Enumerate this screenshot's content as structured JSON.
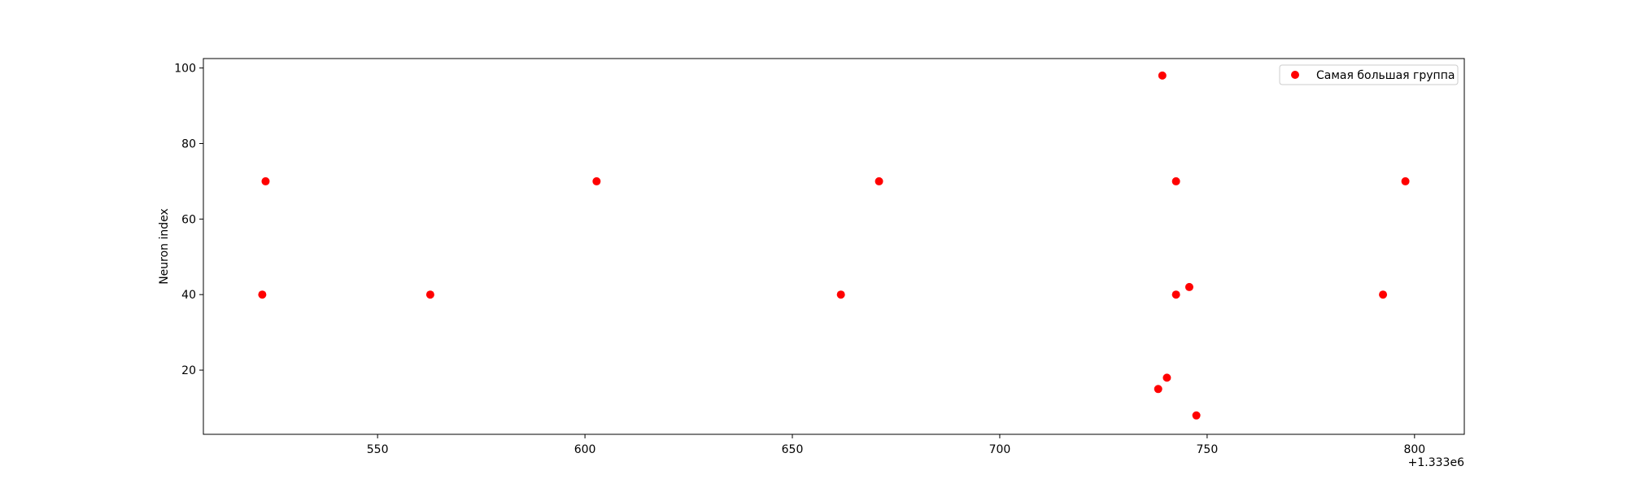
{
  "chart_data": {
    "type": "scatter",
    "title": "",
    "xlabel": "",
    "ylabel": "Neuron index",
    "x_offset_label": "+1.333e6",
    "xlim": [
      508,
      812
    ],
    "ylim": [
      3,
      102.5
    ],
    "x_ticks": [
      550,
      600,
      650,
      700,
      750,
      800
    ],
    "x_tick_labels": [
      "550",
      "600",
      "650",
      "700",
      "750",
      "800"
    ],
    "y_ticks": [
      20,
      40,
      60,
      80,
      100
    ],
    "y_tick_labels": [
      "20",
      "40",
      "60",
      "80",
      "100"
    ],
    "grid": false,
    "legend_position": "top-right",
    "series": [
      {
        "name": "Самая большая группа",
        "color": "#ff0000",
        "points": [
          {
            "x": 522.2,
            "y": 40
          },
          {
            "x": 523.0,
            "y": 70
          },
          {
            "x": 562.7,
            "y": 40
          },
          {
            "x": 602.8,
            "y": 70
          },
          {
            "x": 661.7,
            "y": 40
          },
          {
            "x": 670.9,
            "y": 70
          },
          {
            "x": 738.2,
            "y": 15
          },
          {
            "x": 739.2,
            "y": 98
          },
          {
            "x": 740.3,
            "y": 18
          },
          {
            "x": 742.5,
            "y": 70
          },
          {
            "x": 742.5,
            "y": 40
          },
          {
            "x": 745.7,
            "y": 42
          },
          {
            "x": 747.4,
            "y": 8
          },
          {
            "x": 792.4,
            "y": 40
          },
          {
            "x": 797.8,
            "y": 70
          }
        ]
      }
    ]
  }
}
